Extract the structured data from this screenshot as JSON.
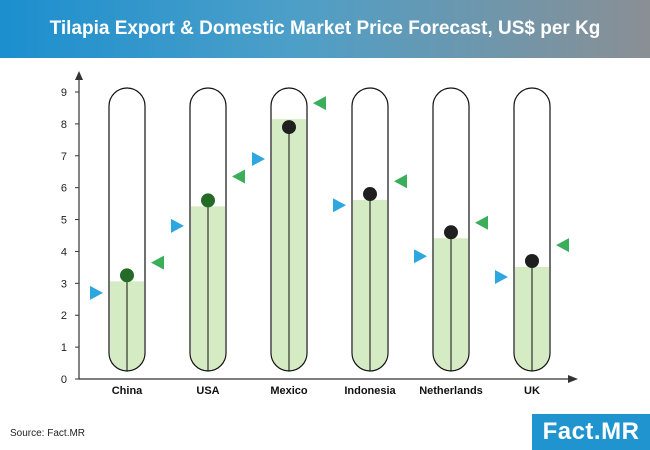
{
  "header": {
    "title": "Tilapia Export & Domestic Market Price Forecast, US$ per Kg"
  },
  "footer": {
    "source": "Source: Fact.MR",
    "logo": "Fact.MR"
  },
  "colors": {
    "fill": "#d5ebc3",
    "domestic_marker": "#1f1f1f",
    "domestic_marker_china": "#236b26",
    "left_triangle": "#2ea6df",
    "right_triangle": "#3aae5a"
  },
  "chart_data": {
    "type": "range-marker",
    "title": "Tilapia Export & Domestic Market Price Forecast, US$ per Kg",
    "categories": [
      "China",
      "USA",
      "Mexico",
      "Indonesia",
      "Netherlands",
      "UK"
    ],
    "ylim": [
      0,
      9
    ],
    "yticks": [
      0,
      1,
      2,
      3,
      4,
      5,
      6,
      7,
      8,
      9
    ],
    "dot_values": [
      3.25,
      5.6,
      7.9,
      5.8,
      4.6,
      3.7
    ],
    "left_triangle_values": [
      2.7,
      4.8,
      6.9,
      5.45,
      3.85,
      3.2
    ],
    "right_triangle_values": [
      3.65,
      6.35,
      8.65,
      6.2,
      4.9,
      4.2
    ],
    "grid": false
  }
}
